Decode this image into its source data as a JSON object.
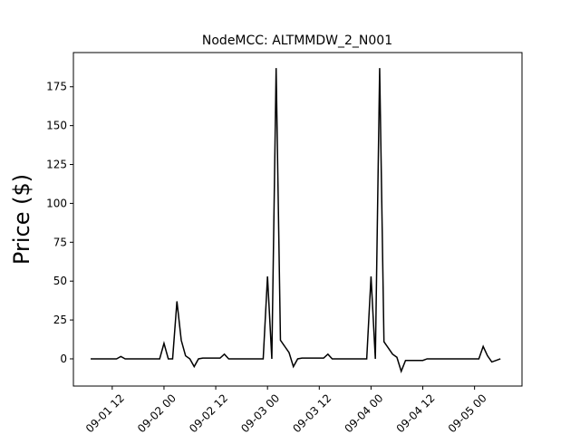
{
  "chart_data": {
    "type": "line",
    "title": "NodeMCC: ALTMMDW_2_N001",
    "y_label": "Price ($)",
    "color": "#000000",
    "x": [
      "09-01 07",
      "09-01 08",
      "09-01 09",
      "09-01 10",
      "09-01 11",
      "09-01 12",
      "09-01 13",
      "09-01 14",
      "09-01 15",
      "09-01 16",
      "09-01 17",
      "09-01 18",
      "09-01 19",
      "09-01 20",
      "09-01 21",
      "09-01 22",
      "09-01 23",
      "09-02 00",
      "09-02 01",
      "09-02 02",
      "09-02 03",
      "09-02 04",
      "09-02 05",
      "09-02 06",
      "09-02 07",
      "09-02 08",
      "09-02 09",
      "09-02 10",
      "09-02 11",
      "09-02 12",
      "09-02 13",
      "09-02 14",
      "09-02 15",
      "09-02 16",
      "09-02 17",
      "09-02 18",
      "09-02 19",
      "09-02 20",
      "09-02 21",
      "09-02 22",
      "09-02 23",
      "09-03 00",
      "09-03 01",
      "09-03 02",
      "09-03 03",
      "09-03 04",
      "09-03 05",
      "09-03 06",
      "09-03 07",
      "09-03 08",
      "09-03 09",
      "09-03 10",
      "09-03 11",
      "09-03 12",
      "09-03 13",
      "09-03 14",
      "09-03 15",
      "09-03 16",
      "09-03 17",
      "09-03 18",
      "09-03 19",
      "09-03 20",
      "09-03 21",
      "09-03 22",
      "09-03 23",
      "09-04 00",
      "09-04 01",
      "09-04 02",
      "09-04 03",
      "09-04 04",
      "09-04 05",
      "09-04 06",
      "09-04 07",
      "09-04 08",
      "09-04 09",
      "09-04 10",
      "09-04 11",
      "09-04 12",
      "09-04 13",
      "09-04 14",
      "09-04 15",
      "09-04 16",
      "09-04 17",
      "09-04 18",
      "09-04 19",
      "09-04 20",
      "09-04 21",
      "09-04 22",
      "09-04 23",
      "09-05 00",
      "09-05 01",
      "09-05 02",
      "09-05 03",
      "09-05 04",
      "09-05 05",
      "09-05 06"
    ],
    "values": [
      0,
      0,
      0,
      0,
      0,
      0,
      0,
      1.5,
      0,
      0,
      0,
      0,
      0,
      0,
      0,
      0,
      0,
      10,
      0,
      0,
      37,
      12,
      2,
      0,
      -5,
      0,
      0.5,
      0.5,
      0.5,
      0.5,
      0.5,
      3,
      0,
      0,
      0,
      0,
      0,
      0,
      0,
      0,
      0,
      53,
      0,
      187,
      12,
      8,
      4,
      -5,
      0,
      0.5,
      0.5,
      0.5,
      0.5,
      0.5,
      0.5,
      3,
      0,
      0,
      0,
      0,
      0,
      0,
      0,
      0,
      0,
      53,
      0,
      187,
      11,
      7,
      3,
      1,
      -8,
      -1,
      -1,
      -1,
      -1,
      -1,
      0,
      0,
      0,
      0,
      0,
      0,
      0,
      0,
      0,
      0,
      0,
      0,
      0,
      8,
      2,
      -2,
      -1,
      0
    ],
    "xlim": [
      "09-01 03",
      "09-05 11"
    ],
    "xticks": [
      "09-01 12",
      "09-02 00",
      "09-02 12",
      "09-03 00",
      "09-03 12",
      "09-04 00",
      "09-04 12",
      "09-05 00"
    ],
    "ylim": [
      -17.5,
      197
    ],
    "yticks": [
      0,
      25,
      50,
      75,
      100,
      125,
      150,
      175
    ]
  }
}
